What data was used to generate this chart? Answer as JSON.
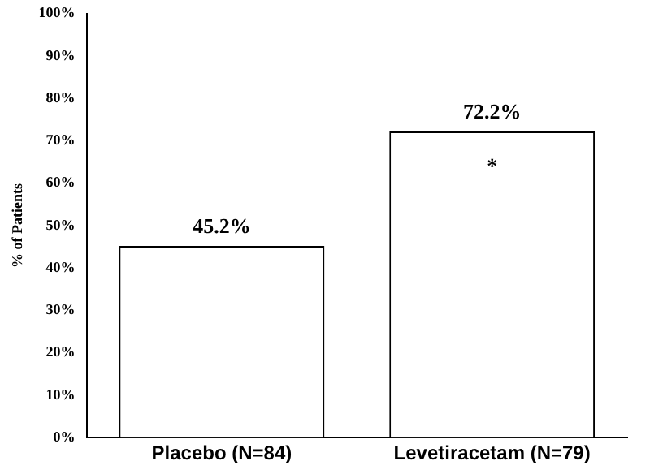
{
  "chart_data": {
    "type": "bar",
    "ylabel": "% of Patients",
    "categories": [
      "Placebo (N=84)",
      "Levetiracetam (N=79)"
    ],
    "values": [
      45.2,
      72.2
    ],
    "color": "#ffffff",
    "value_labels": [
      "45.2%",
      "72.2%"
    ],
    "annotations": [
      "*"
    ],
    "ylim": [
      0,
      100
    ],
    "yticks": [
      {
        "value": 0,
        "label": "0%"
      },
      {
        "value": 10,
        "label": "10%"
      },
      {
        "value": 20,
        "label": "20%"
      },
      {
        "value": 30,
        "label": "30%"
      },
      {
        "value": 40,
        "label": "40%"
      },
      {
        "value": 50,
        "label": "50%"
      },
      {
        "value": 60,
        "label": "60%"
      },
      {
        "value": 70,
        "label": "70%"
      },
      {
        "value": 80,
        "label": "80%"
      },
      {
        "value": 90,
        "label": "90%"
      },
      {
        "value": 100,
        "label": "100%"
      }
    ],
    "grid": false,
    "legend": false
  }
}
